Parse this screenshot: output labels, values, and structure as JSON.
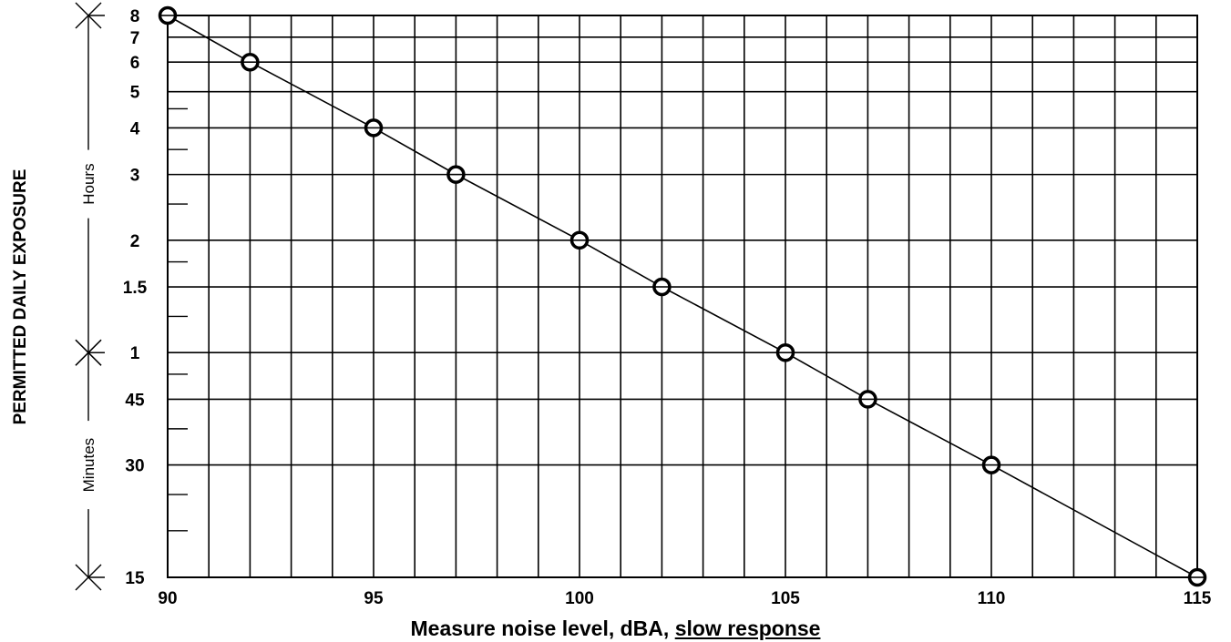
{
  "chart_data": {
    "type": "line",
    "title": "",
    "ylabel": "PERMITTED DAILY EXPOSURE",
    "xlabel": {
      "main": "Measure noise level, dBA, ",
      "underlined": "slow response"
    },
    "xlim": [
      90,
      115
    ],
    "x_ticks": [
      90,
      95,
      100,
      105,
      110,
      115
    ],
    "y_scale": "log",
    "y_unit": "minutes",
    "ylim": [
      15,
      480
    ],
    "y_ticks": [
      {
        "label": "8",
        "minutes": 480
      },
      {
        "label": "7",
        "minutes": 420
      },
      {
        "label": "6",
        "minutes": 360
      },
      {
        "label": "5",
        "minutes": 300
      },
      {
        "label": "4",
        "minutes": 240
      },
      {
        "label": "3",
        "minutes": 180
      },
      {
        "label": "2",
        "minutes": 120
      },
      {
        "label": "1.5",
        "minutes": 90
      },
      {
        "label": "1",
        "minutes": 60
      },
      {
        "label": "45",
        "minutes": 45
      },
      {
        "label": "30",
        "minutes": 30
      },
      {
        "label": "15",
        "minutes": 15
      }
    ],
    "brackets": [
      {
        "label": "Hours",
        "from_minutes": 480,
        "to_minutes": 60
      },
      {
        "label": "Minutes",
        "from_minutes": 60,
        "to_minutes": 15
      }
    ],
    "grid": true,
    "series": [
      {
        "x": [
          90,
          92,
          95,
          97,
          100,
          102,
          105,
          107,
          110,
          115
        ],
        "y": [
          480,
          360,
          240,
          180,
          120,
          90,
          60,
          45,
          30,
          15
        ]
      }
    ]
  }
}
